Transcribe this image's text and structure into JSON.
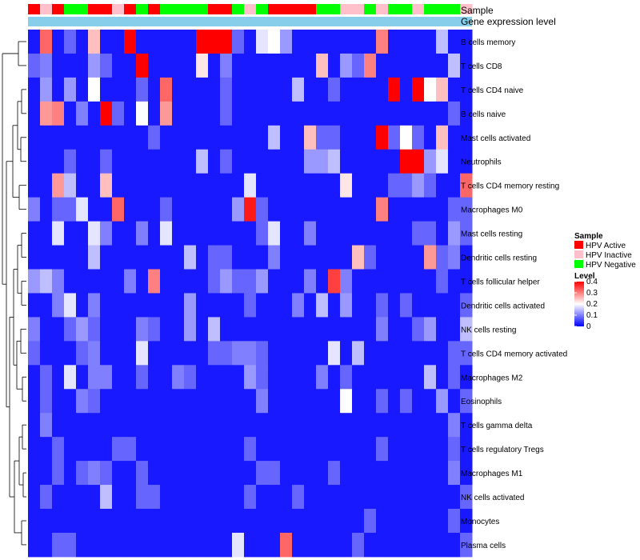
{
  "chart_data": {
    "type": "heatmap",
    "title": "",
    "annotation_labels": {
      "sample": "Sample",
      "expression": "Gene expression level"
    },
    "legend": {
      "sample": {
        "title": "Sample",
        "entries": [
          {
            "label": "HPV Active",
            "color": "#ff0000"
          },
          {
            "label": "HPV Inactive",
            "color": "#ffc0cb"
          },
          {
            "label": "HPV Negative",
            "color": "#00ff00"
          }
        ]
      },
      "level": {
        "title": "Level",
        "ticks": [
          "0.4",
          "0.3",
          "0.2",
          "0.1",
          "0"
        ],
        "range": [
          0,
          0.4
        ],
        "colors": {
          "low": "#0000ff",
          "mid": "#ffffff",
          "high": "#ff0000"
        }
      }
    },
    "expression_bar_color": "#87ceeb",
    "sample_groups": [
      "HPV Active",
      "HPV Inactive",
      "HPV Active",
      "HPV Negative",
      "HPV Negative",
      "HPV Active",
      "HPV Active",
      "HPV Inactive",
      "HPV Active",
      "HPV Negative",
      "HPV Active",
      "HPV Negative",
      "HPV Negative",
      "HPV Negative",
      "HPV Negative",
      "HPV Active",
      "HPV Active",
      "HPV Negative",
      "HPV Inactive",
      "HPV Negative",
      "HPV Active",
      "HPV Active",
      "HPV Active",
      "HPV Active",
      "HPV Negative",
      "HPV Negative",
      "HPV Inactive",
      "HPV Inactive",
      "HPV Negative",
      "HPV Inactive",
      "HPV Negative",
      "HPV Negative",
      "HPV Inactive",
      "HPV Negative",
      "HPV Negative",
      "HPV Negative",
      "HPV Inactive"
    ],
    "rows": [
      "B cells memory",
      "T cells CD8",
      "T cells CD4 naive",
      "B cells naive",
      "Mast cells activated",
      "Neutrophils",
      "T cells CD4 memory resting",
      "Macrophages M0",
      "Mast cells resting",
      "Dendritic cells resting",
      "T cells follicular helper",
      "Dendritic cells activated",
      "NK cells resting",
      "T cells CD4 memory activated",
      "Macrophages M2",
      "Eosinophils",
      "T cells gamma delta",
      "T cells regulatory  Tregs",
      "Macrophages M1",
      "NK cells activated",
      "Monocytes",
      "Plasma cells"
    ],
    "values": [
      [
        0.02,
        0.32,
        0.02,
        0.08,
        0.02,
        0.25,
        0.02,
        0.02,
        0.4,
        0.02,
        0.02,
        0.02,
        0.02,
        0.02,
        0.4,
        0.4,
        0.4,
        0.08,
        0.02,
        0.18,
        0.2,
        0.12,
        0.02,
        0.02,
        0.02,
        0.02,
        0.02,
        0.02,
        0.02,
        0.3,
        0.02,
        0.02,
        0.02,
        0.02,
        0.15,
        0.02,
        0.02
      ],
      [
        0.08,
        0.1,
        0.02,
        0.02,
        0.02,
        0.12,
        0.08,
        0.02,
        0.02,
        0.4,
        0.02,
        0.02,
        0.02,
        0.02,
        0.22,
        0.02,
        0.1,
        0.02,
        0.02,
        0.02,
        0.02,
        0.02,
        0.02,
        0.02,
        0.25,
        0.02,
        0.12,
        0.08,
        0.3,
        0.02,
        0.02,
        0.02,
        0.02,
        0.02,
        0.02,
        0.15,
        0.02
      ],
      [
        0.02,
        0.12,
        0.02,
        0.12,
        0.02,
        0.2,
        0.02,
        0.02,
        0.02,
        0.08,
        0.02,
        0.32,
        0.02,
        0.02,
        0.02,
        0.02,
        0.08,
        0.02,
        0.02,
        0.02,
        0.02,
        0.02,
        0.15,
        0.02,
        0.02,
        0.08,
        0.02,
        0.02,
        0.02,
        0.02,
        0.4,
        0.02,
        0.4,
        0.2,
        0.25,
        0.02,
        0.02
      ],
      [
        0.02,
        0.28,
        0.3,
        0.02,
        0.1,
        0.02,
        0.4,
        0.08,
        0.02,
        0.2,
        0.02,
        0.28,
        0.02,
        0.02,
        0.02,
        0.02,
        0.08,
        0.02,
        0.02,
        0.02,
        0.02,
        0.02,
        0.02,
        0.02,
        0.02,
        0.02,
        0.02,
        0.02,
        0.02,
        0.02,
        0.02,
        0.02,
        0.02,
        0.02,
        0.02,
        0.08,
        0.02
      ],
      [
        0.02,
        0.02,
        0.02,
        0.02,
        0.02,
        0.02,
        0.02,
        0.02,
        0.02,
        0.02,
        0.08,
        0.02,
        0.02,
        0.02,
        0.02,
        0.02,
        0.02,
        0.02,
        0.02,
        0.02,
        0.15,
        0.02,
        0.02,
        0.25,
        0.08,
        0.08,
        0.02,
        0.02,
        0.02,
        0.4,
        0.08,
        0.2,
        0.08,
        0.02,
        0.25,
        0.02,
        0.02
      ],
      [
        0.02,
        0.02,
        0.02,
        0.08,
        0.02,
        0.02,
        0.08,
        0.02,
        0.02,
        0.02,
        0.02,
        0.02,
        0.02,
        0.02,
        0.15,
        0.02,
        0.08,
        0.02,
        0.02,
        0.02,
        0.02,
        0.02,
        0.02,
        0.12,
        0.12,
        0.15,
        0.02,
        0.02,
        0.02,
        0.02,
        0.02,
        0.4,
        0.4,
        0.12,
        0.18,
        0.02,
        0.02
      ],
      [
        0.02,
        0.02,
        0.28,
        0.15,
        0.02,
        0.02,
        0.25,
        0.02,
        0.02,
        0.02,
        0.02,
        0.02,
        0.02,
        0.02,
        0.02,
        0.02,
        0.02,
        0.02,
        0.18,
        0.02,
        0.02,
        0.02,
        0.02,
        0.02,
        0.02,
        0.02,
        0.22,
        0.02,
        0.02,
        0.02,
        0.08,
        0.08,
        0.12,
        0.08,
        0.02,
        0.02,
        0.32
      ],
      [
        0.1,
        0.02,
        0.08,
        0.08,
        0.18,
        0.02,
        0.02,
        0.32,
        0.02,
        0.02,
        0.02,
        0.08,
        0.02,
        0.02,
        0.02,
        0.02,
        0.02,
        0.12,
        0.38,
        0.08,
        0.02,
        0.02,
        0.02,
        0.02,
        0.02,
        0.02,
        0.02,
        0.02,
        0.02,
        0.3,
        0.02,
        0.02,
        0.02,
        0.02,
        0.02,
        0.08,
        0.08
      ],
      [
        0.02,
        0.02,
        0.18,
        0.02,
        0.02,
        0.18,
        0.1,
        0.02,
        0.02,
        0.1,
        0.02,
        0.18,
        0.02,
        0.02,
        0.02,
        0.02,
        0.02,
        0.02,
        0.02,
        0.08,
        0.18,
        0.02,
        0.02,
        0.1,
        0.02,
        0.02,
        0.02,
        0.02,
        0.02,
        0.02,
        0.02,
        0.02,
        0.08,
        0.08,
        0.02,
        0.12,
        0.08
      ],
      [
        0.02,
        0.02,
        0.02,
        0.02,
        0.02,
        0.15,
        0.02,
        0.02,
        0.02,
        0.02,
        0.02,
        0.02,
        0.02,
        0.15,
        0.02,
        0.08,
        0.08,
        0.02,
        0.02,
        0.02,
        0.1,
        0.02,
        0.02,
        0.02,
        0.02,
        0.02,
        0.02,
        0.25,
        0.08,
        0.02,
        0.02,
        0.02,
        0.02,
        0.28,
        0.08,
        0.1,
        0.02
      ],
      [
        0.12,
        0.15,
        0.1,
        0.02,
        0.02,
        0.02,
        0.02,
        0.02,
        0.1,
        0.02,
        0.3,
        0.02,
        0.02,
        0.02,
        0.02,
        0.08,
        0.12,
        0.08,
        0.08,
        0.12,
        0.02,
        0.02,
        0.02,
        0.1,
        0.02,
        0.35,
        0.1,
        0.02,
        0.02,
        0.02,
        0.02,
        0.02,
        0.02,
        0.02,
        0.08,
        0.02,
        0.02
      ],
      [
        0.02,
        0.02,
        0.1,
        0.18,
        0.02,
        0.1,
        0.02,
        0.02,
        0.02,
        0.02,
        0.02,
        0.02,
        0.02,
        0.12,
        0.02,
        0.02,
        0.02,
        0.02,
        0.08,
        0.02,
        0.02,
        0.02,
        0.1,
        0.02,
        0.15,
        0.02,
        0.12,
        0.02,
        0.02,
        0.08,
        0.02,
        0.08,
        0.02,
        0.02,
        0.02,
        0.02,
        0.08
      ],
      [
        0.1,
        0.02,
        0.02,
        0.08,
        0.12,
        0.08,
        0.02,
        0.02,
        0.02,
        0.1,
        0.08,
        0.02,
        0.02,
        0.12,
        0.02,
        0.15,
        0.02,
        0.02,
        0.02,
        0.02,
        0.02,
        0.02,
        0.02,
        0.02,
        0.02,
        0.02,
        0.02,
        0.02,
        0.02,
        0.1,
        0.02,
        0.02,
        0.08,
        0.12,
        0.02,
        0.02,
        0.15
      ],
      [
        0.08,
        0.02,
        0.02,
        0.02,
        0.08,
        0.1,
        0.02,
        0.02,
        0.02,
        0.18,
        0.02,
        0.02,
        0.02,
        0.02,
        0.02,
        0.08,
        0.08,
        0.1,
        0.1,
        0.08,
        0.02,
        0.02,
        0.02,
        0.02,
        0.02,
        0.18,
        0.02,
        0.15,
        0.02,
        0.02,
        0.02,
        0.02,
        0.02,
        0.02,
        0.02,
        0.08,
        0.08
      ],
      [
        0.02,
        0.08,
        0.02,
        0.18,
        0.02,
        0.1,
        0.1,
        0.02,
        0.02,
        0.08,
        0.02,
        0.02,
        0.1,
        0.08,
        0.02,
        0.02,
        0.02,
        0.02,
        0.12,
        0.08,
        0.02,
        0.02,
        0.02,
        0.02,
        0.1,
        0.02,
        0.08,
        0.02,
        0.02,
        0.02,
        0.02,
        0.02,
        0.02,
        0.15,
        0.02,
        0.08,
        0.02
      ],
      [
        0.02,
        0.08,
        0.02,
        0.02,
        0.1,
        0.08,
        0.02,
        0.02,
        0.02,
        0.02,
        0.02,
        0.02,
        0.02,
        0.02,
        0.02,
        0.02,
        0.02,
        0.02,
        0.02,
        0.1,
        0.02,
        0.02,
        0.02,
        0.02,
        0.02,
        0.02,
        0.2,
        0.02,
        0.02,
        0.08,
        0.02,
        0.08,
        0.02,
        0.02,
        0.12,
        0.02,
        0.08
      ],
      [
        0.02,
        0.1,
        0.02,
        0.02,
        0.02,
        0.02,
        0.02,
        0.02,
        0.02,
        0.02,
        0.02,
        0.02,
        0.02,
        0.02,
        0.02,
        0.02,
        0.02,
        0.02,
        0.02,
        0.02,
        0.02,
        0.02,
        0.02,
        0.02,
        0.02,
        0.02,
        0.02,
        0.02,
        0.02,
        0.02,
        0.02,
        0.02,
        0.02,
        0.02,
        0.02,
        0.1,
        0.02
      ],
      [
        0.02,
        0.02,
        0.08,
        0.02,
        0.02,
        0.02,
        0.02,
        0.08,
        0.08,
        0.02,
        0.02,
        0.02,
        0.02,
        0.02,
        0.02,
        0.02,
        0.02,
        0.02,
        0.08,
        0.02,
        0.02,
        0.02,
        0.02,
        0.02,
        0.02,
        0.02,
        0.02,
        0.02,
        0.02,
        0.08,
        0.02,
        0.02,
        0.02,
        0.02,
        0.02,
        0.08,
        0.02
      ],
      [
        0.02,
        0.02,
        0.08,
        0.02,
        0.08,
        0.1,
        0.08,
        0.02,
        0.02,
        0.08,
        0.02,
        0.02,
        0.02,
        0.02,
        0.02,
        0.02,
        0.02,
        0.02,
        0.02,
        0.08,
        0.08,
        0.02,
        0.02,
        0.02,
        0.02,
        0.08,
        0.02,
        0.02,
        0.02,
        0.02,
        0.02,
        0.02,
        0.02,
        0.02,
        0.02,
        0.1,
        0.02
      ],
      [
        0.02,
        0.08,
        0.02,
        0.02,
        0.02,
        0.02,
        0.15,
        0.02,
        0.02,
        0.08,
        0.08,
        0.02,
        0.02,
        0.02,
        0.02,
        0.02,
        0.02,
        0.02,
        0.08,
        0.02,
        0.02,
        0.02,
        0.08,
        0.02,
        0.02,
        0.02,
        0.02,
        0.02,
        0.02,
        0.02,
        0.02,
        0.02,
        0.02,
        0.02,
        0.02,
        0.02,
        0.08
      ],
      [
        0.02,
        0.02,
        0.02,
        0.02,
        0.02,
        0.02,
        0.02,
        0.02,
        0.02,
        0.02,
        0.02,
        0.02,
        0.02,
        0.02,
        0.02,
        0.02,
        0.02,
        0.02,
        0.02,
        0.02,
        0.02,
        0.02,
        0.02,
        0.02,
        0.02,
        0.02,
        0.02,
        0.02,
        0.08,
        0.02,
        0.02,
        0.02,
        0.02,
        0.02,
        0.02,
        0.08,
        0.02
      ],
      [
        0.02,
        0.02,
        0.08,
        0.08,
        0.02,
        0.02,
        0.02,
        0.02,
        0.02,
        0.02,
        0.02,
        0.02,
        0.02,
        0.02,
        0.02,
        0.02,
        0.02,
        0.18,
        0.02,
        0.02,
        0.02,
        0.32,
        0.02,
        0.02,
        0.02,
        0.02,
        0.02,
        0.08,
        0.02,
        0.02,
        0.02,
        0.02,
        0.02,
        0.02,
        0.02,
        0.02,
        0.08
      ]
    ],
    "dendrogram_order": [
      "B cells memory",
      "T cells CD8",
      "T cells CD4 naive",
      "B cells naive",
      "Mast cells activated",
      "Neutrophils",
      "T cells CD4 memory resting",
      "Macrophages M0",
      "Mast cells resting",
      "Dendritic cells resting",
      "T cells follicular helper",
      "Dendritic cells activated",
      "NK cells resting",
      "T cells CD4 memory activated",
      "Macrophages M2",
      "Eosinophils",
      "T cells gamma delta",
      "T cells regulatory  Tregs",
      "Macrophages M1",
      "NK cells activated",
      "Monocytes",
      "Plasma cells"
    ]
  }
}
